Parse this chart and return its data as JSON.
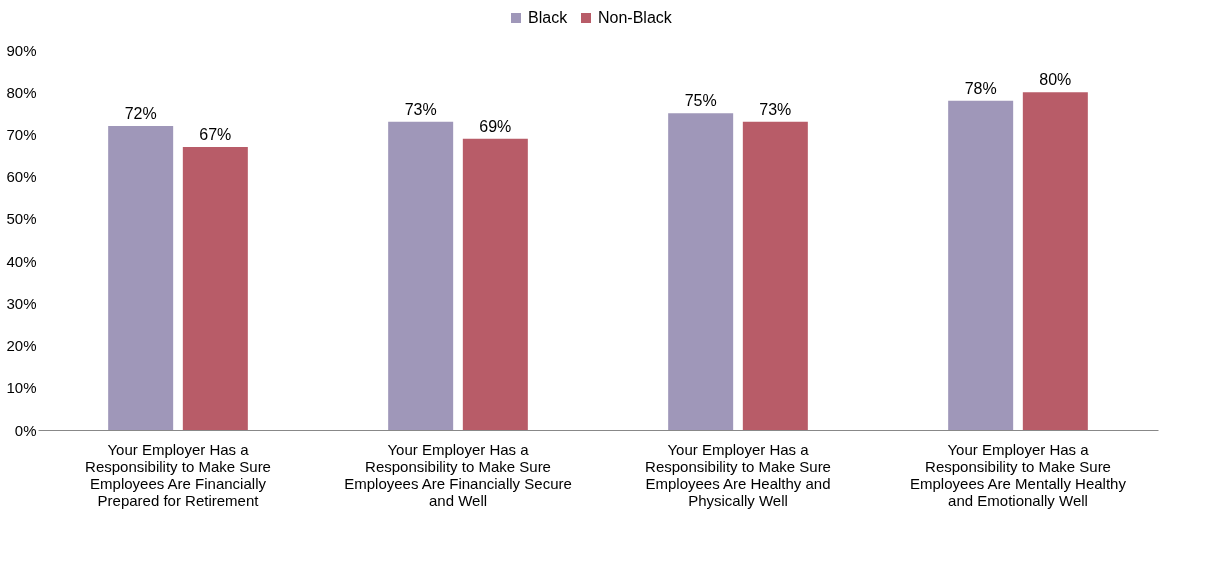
{
  "chart_data": {
    "type": "bar",
    "categories": [
      "Your Employer Has a Responsibility to Make Sure Employees Are Financially Prepared for Retirement",
      "Your Employer Has a Responsibility to Make Sure Employees Are Financially Secure and Well",
      "Your Employer Has a Responsibility to Make Sure Employees Are Healthy and Physically Well",
      "Your Employer Has a Responsibility to Make Sure Employees Are Mentally Healthy and Emotionally Well"
    ],
    "series": [
      {
        "name": "Black",
        "color": "#9f97b9",
        "values": [
          72,
          73,
          75,
          78
        ],
        "value_labels": [
          "72%",
          "73%",
          "75%",
          "78%"
        ]
      },
      {
        "name": "Non-Black",
        "color": "#b85c68",
        "values": [
          67,
          69,
          73,
          80
        ],
        "value_labels": [
          "67%",
          "69%",
          "73%",
          "80%"
        ]
      }
    ],
    "ylim": [
      0,
      90
    ],
    "yticks": [
      {
        "value": 0,
        "label": "0%"
      },
      {
        "value": 10,
        "label": "10%"
      },
      {
        "value": 20,
        "label": "20%"
      },
      {
        "value": 30,
        "label": "30%"
      },
      {
        "value": 40,
        "label": "40%"
      },
      {
        "value": 50,
        "label": "50%"
      },
      {
        "value": 60,
        "label": "60%"
      },
      {
        "value": 70,
        "label": "70%"
      },
      {
        "value": 80,
        "label": "80%"
      },
      {
        "value": 90,
        "label": "90%"
      }
    ],
    "legend": "top",
    "grid": false
  }
}
